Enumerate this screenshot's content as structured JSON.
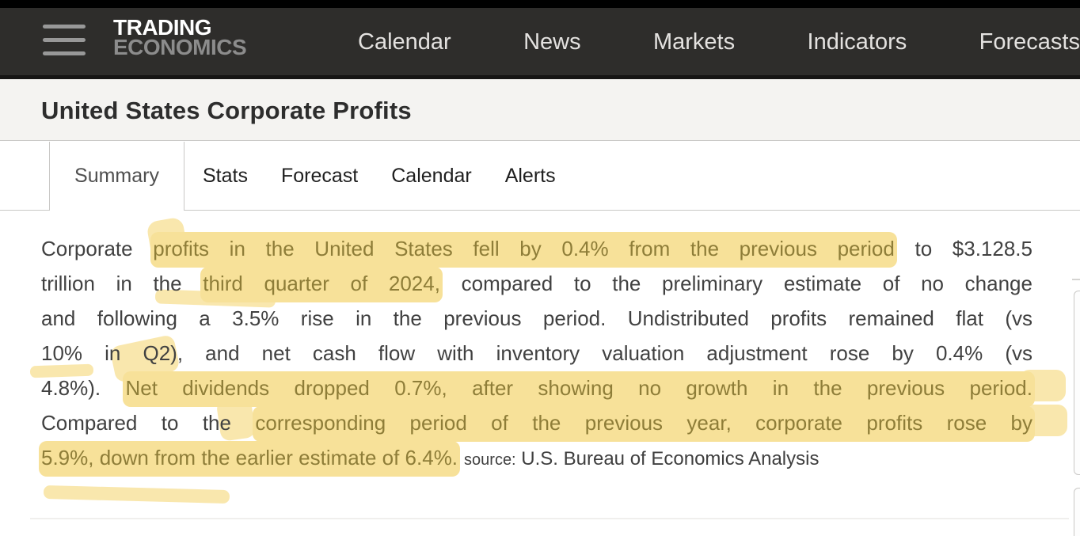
{
  "navbar": {
    "logo": {
      "line1": "TRADING",
      "line2": "ECONOMICS"
    },
    "items": [
      {
        "label": "Calendar"
      },
      {
        "label": "News"
      },
      {
        "label": "Markets"
      },
      {
        "label": "Indicators"
      },
      {
        "label": "Forecasts"
      }
    ]
  },
  "page": {
    "title": "United States Corporate Profits"
  },
  "tabs": {
    "active": "Summary",
    "items": [
      {
        "label": "Summary",
        "active": true
      },
      {
        "label": "Stats"
      },
      {
        "label": "Forecast"
      },
      {
        "label": "Calendar"
      },
      {
        "label": "Alerts"
      }
    ]
  },
  "summary": {
    "lines": [
      {
        "justify": true,
        "segments": [
          {
            "text": "Corporate ",
            "hl": false
          },
          {
            "text": "profits in the United States fell by 0.4% from the previous period",
            "hl": true
          },
          {
            "text": " to $3.128.5",
            "hl": false
          }
        ]
      },
      {
        "justify": true,
        "segments": [
          {
            "text": "trillion in the ",
            "hl": false
          },
          {
            "text": "third quarter of 2024,",
            "hl": true
          },
          {
            "text": " compared to the preliminary estimate of no change",
            "hl": false
          }
        ]
      },
      {
        "justify": true,
        "segments": [
          {
            "text": "and following a 3.5% rise in the previous period. Undistributed profits remained flat (vs",
            "hl": false
          }
        ]
      },
      {
        "justify": true,
        "segments": [
          {
            "text": "10% in Q2), and net cash flow with inventory valuation adjustment rose by 0.4% (vs",
            "hl": false
          }
        ]
      },
      {
        "justify": true,
        "segments": [
          {
            "text": "4.8%). ",
            "hl": false
          },
          {
            "text": "Net dividends dropped 0.7%, after showing no growth in the previous period.",
            "hl": true
          }
        ]
      },
      {
        "justify": true,
        "segments": [
          {
            "text": "Compared to the ",
            "hl": false
          },
          {
            "text": "corresponding period of the previous year, corporate profits rose by",
            "hl": true
          }
        ]
      },
      {
        "justify": false,
        "segments": [
          {
            "text": "5.9%, down from the earlier estimate of 6.4%.",
            "hl": true
          },
          {
            "text": "source:",
            "hl": false,
            "cls": "src-label"
          },
          {
            "text": " U.S. Bureau of Economics Analysis",
            "hl": false,
            "cls": "src-text"
          }
        ]
      }
    ]
  },
  "colors": {
    "navbar_bg": "#2e2d2b",
    "navbar_top_strip": "#000000",
    "navbar_bottom_strip": "#161514",
    "nav_text": "#e4e2e0",
    "logo_primary": "#ffffff",
    "logo_secondary": "#8c8c8c",
    "title_band_bg": "#f4f3f1",
    "title_text": "#2d2d2d",
    "border": "#c9c8c6",
    "body_text": "#414141",
    "highlight": "#f7e199",
    "highlight_text": "#8e7d38",
    "tab_active_text": "#4f4f4f",
    "tab_text": "#1f1f1f",
    "source_text": "#3f3f3f"
  }
}
